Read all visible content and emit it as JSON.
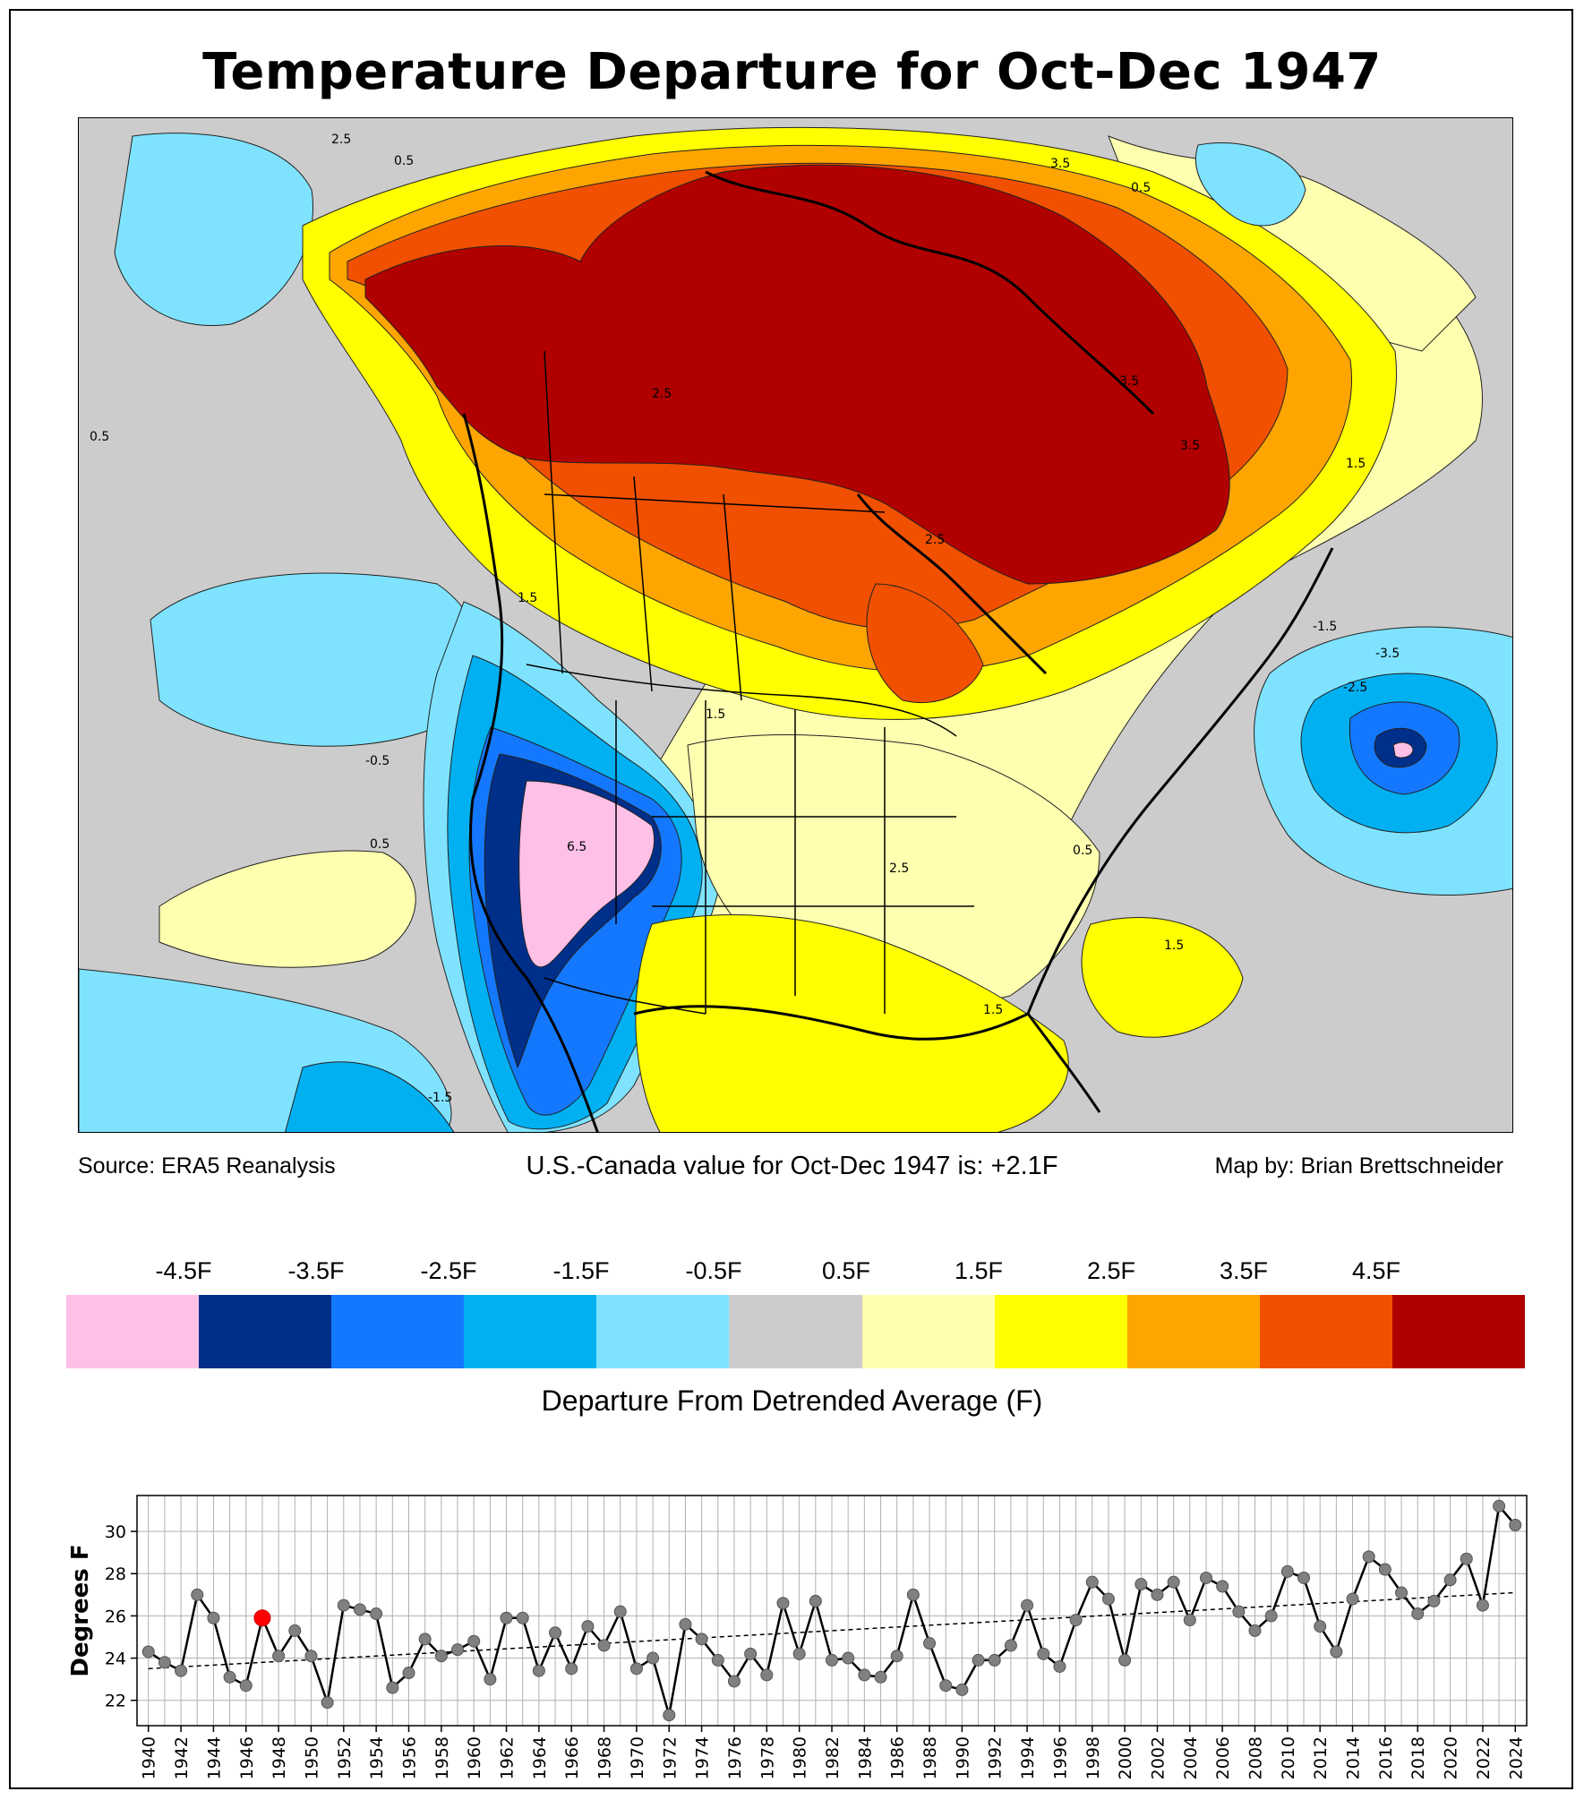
{
  "title": "Temperature Departure for Oct-Dec 1947",
  "footer": {
    "source": "Source: ERA5 Reanalysis",
    "value_text": "U.S.-Canada value for Oct-Dec 1947 is: +2.1F",
    "credit": "Map by: Brian Brettschneider"
  },
  "map_labels": [
    "2.5",
    "0.5",
    "0.5",
    "3.5",
    "3.5",
    "0.5",
    "3.5",
    "1.5",
    "2.5",
    "1.5",
    "-0.5",
    "0.5",
    "-1.5",
    "-2.5",
    "-3.5",
    "2.5",
    "1.5",
    "0.5",
    "1.5",
    "-1.5",
    "1.5",
    "2.5",
    "6.5"
  ],
  "colors": {
    "pink": "#ffc0e8",
    "navy": "#002f8a",
    "blue": "#1478ff",
    "azure": "#00b0f0",
    "sky": "#7fe3ff",
    "gray": "#cccccc",
    "cream": "#ffffb0",
    "yellow": "#ffff00",
    "orange": "#ffa500",
    "redorange": "#f05000",
    "darkred": "#b00000",
    "red_marker": "#ff0000"
  },
  "colorbar": {
    "ticks": [
      "-4.5F",
      "-3.5F",
      "-2.5F",
      "-1.5F",
      "-0.5F",
      "0.5F",
      "1.5F",
      "2.5F",
      "3.5F",
      "4.5F"
    ],
    "colors": [
      "#ffc0e8",
      "#002f8a",
      "#1478ff",
      "#00b0f0",
      "#7fe3ff",
      "#cccccc",
      "#ffffb0",
      "#ffff00",
      "#ffa500",
      "#f05000",
      "#b00000"
    ],
    "label": "Departure From Detrended Average (F)"
  },
  "chart_data": {
    "type": "line",
    "ylabel": "Degrees F",
    "xlabel": "",
    "ylim": [
      20.8,
      31.7
    ],
    "xlim": [
      1939.3,
      2024.7
    ],
    "yticks": [
      "22",
      "24",
      "26",
      "28",
      "30"
    ],
    "xticks": [
      "1940",
      "1942",
      "1944",
      "1946",
      "1948",
      "1950",
      "1952",
      "1954",
      "1956",
      "1958",
      "1960",
      "1962",
      "1964",
      "1966",
      "1968",
      "1970",
      "1972",
      "1974",
      "1976",
      "1978",
      "1980",
      "1982",
      "1984",
      "1986",
      "1988",
      "1990",
      "1992",
      "1994",
      "1996",
      "1998",
      "2000",
      "2002",
      "2004",
      "2006",
      "2008",
      "2010",
      "2012",
      "2014",
      "2016",
      "2018",
      "2020",
      "2022",
      "2024"
    ],
    "grid": true,
    "years": [
      1940,
      1941,
      1942,
      1943,
      1944,
      1945,
      1946,
      1947,
      1948,
      1949,
      1950,
      1951,
      1952,
      1953,
      1954,
      1955,
      1956,
      1957,
      1958,
      1959,
      1960,
      1961,
      1962,
      1963,
      1964,
      1965,
      1966,
      1967,
      1968,
      1969,
      1970,
      1971,
      1972,
      1973,
      1974,
      1975,
      1976,
      1977,
      1978,
      1979,
      1980,
      1981,
      1982,
      1983,
      1984,
      1985,
      1986,
      1987,
      1988,
      1989,
      1990,
      1991,
      1992,
      1993,
      1994,
      1995,
      1996,
      1997,
      1998,
      1999,
      2000,
      2001,
      2002,
      2003,
      2004,
      2005,
      2006,
      2007,
      2008,
      2009,
      2010,
      2011,
      2012,
      2013,
      2014,
      2015,
      2016,
      2017,
      2018,
      2019,
      2020,
      2021,
      2022,
      2023,
      2024
    ],
    "values": [
      24.3,
      23.8,
      23.4,
      27.0,
      25.9,
      23.1,
      22.7,
      25.9,
      24.1,
      25.3,
      24.1,
      21.9,
      26.5,
      26.3,
      26.1,
      22.6,
      23.3,
      24.9,
      24.1,
      24.4,
      24.8,
      23.0,
      25.9,
      25.9,
      23.4,
      25.2,
      23.5,
      25.5,
      24.6,
      26.2,
      23.5,
      24.0,
      21.3,
      25.6,
      24.9,
      23.9,
      22.9,
      24.2,
      23.2,
      26.6,
      24.2,
      26.7,
      23.9,
      24.0,
      23.2,
      23.1,
      24.1,
      27.0,
      24.7,
      22.7,
      22.5,
      23.9,
      23.9,
      24.6,
      26.5,
      24.2,
      23.6,
      25.8,
      27.6,
      26.8,
      23.9,
      27.5,
      27.0,
      27.6,
      25.8,
      27.8,
      27.4,
      26.2,
      25.3,
      26.0,
      28.1,
      27.8,
      25.5,
      24.3,
      26.8,
      28.8,
      28.2,
      27.1,
      26.1,
      26.7,
      27.7,
      28.7,
      26.5,
      31.2,
      30.3
    ],
    "highlight_year": 1947,
    "trend": {
      "start": [
        1940,
        23.5
      ],
      "end": [
        2024,
        27.1
      ]
    }
  }
}
